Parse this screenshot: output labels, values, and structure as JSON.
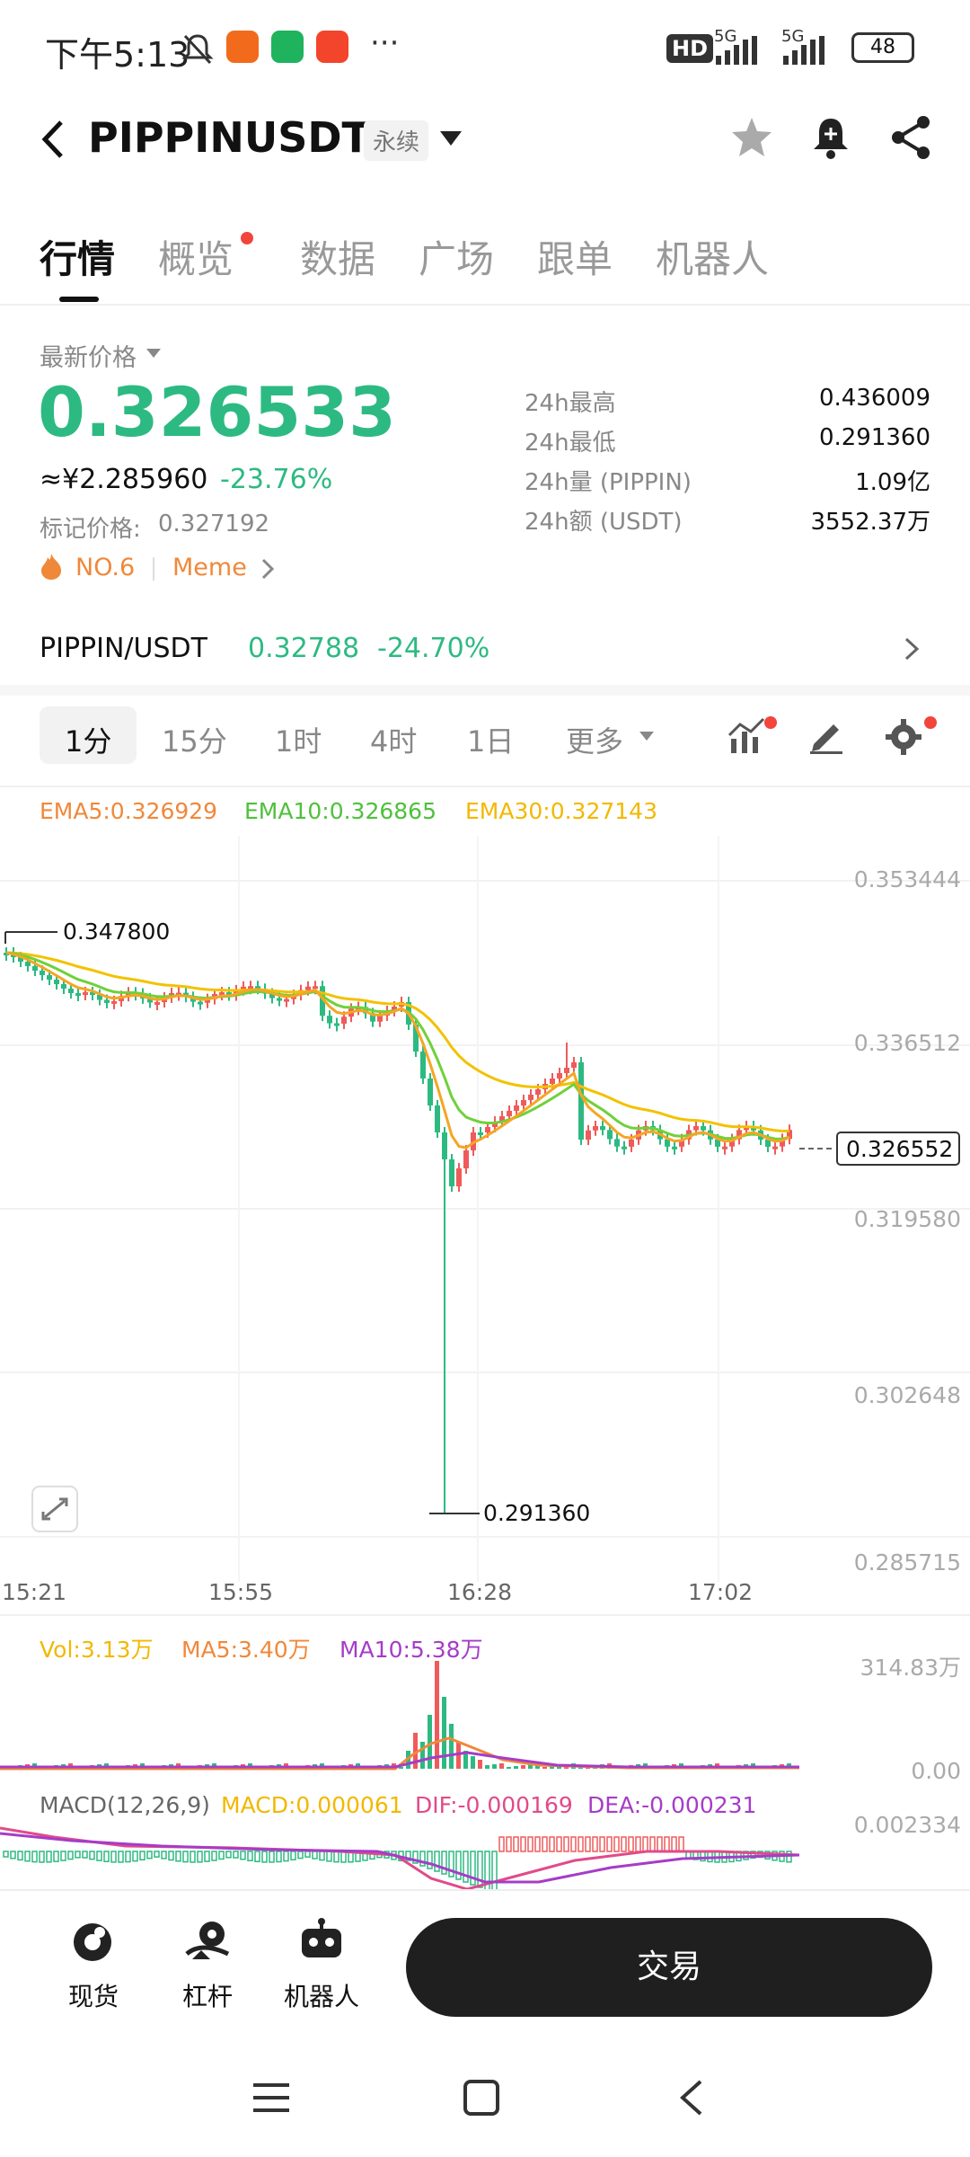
{
  "status_bar": {
    "time": "下午5:13",
    "dots": "···",
    "hd": "HD",
    "net1": "5G",
    "net2": "5G",
    "battery": "48"
  },
  "header": {
    "title": "PIPPINUSDT",
    "badge": "永续"
  },
  "tabs": [
    {
      "label": "行情"
    },
    {
      "label": "概览"
    },
    {
      "label": "数据"
    },
    {
      "label": "广场"
    },
    {
      "label": "跟单"
    },
    {
      "label": "机器人"
    }
  ],
  "price": {
    "label": "最新价格",
    "value": "0.326533",
    "cny": "≈¥2.285960",
    "change": "-23.76%",
    "mark_label": "标记价格:",
    "mark_value": "0.327192",
    "rank": "NO.6",
    "tag": "Meme"
  },
  "stats": [
    {
      "label": "24h最高",
      "value": "0.436009"
    },
    {
      "label": "24h最低",
      "value": "0.291360"
    },
    {
      "label": "24h量 (PIPPIN)",
      "value": "1.09亿"
    },
    {
      "label": "24h额 (USDT)",
      "value": "3552.37万"
    }
  ],
  "spot": {
    "pair": "PIPPIN/USDT",
    "price": "0.32788",
    "change": "-24.70%"
  },
  "timeframes": [
    {
      "label": "1分"
    },
    {
      "label": "15分"
    },
    {
      "label": "1时"
    },
    {
      "label": "4时"
    },
    {
      "label": "1日"
    },
    {
      "label": "更多"
    }
  ],
  "ema": {
    "ema5": "EMA5:0.326929",
    "ema10": "EMA10:0.326865",
    "ema30": "EMA30:0.327143"
  },
  "chart": {
    "y_ticks": [
      "0.353444",
      "0.336512",
      "0.319580",
      "0.302648",
      "0.285715"
    ],
    "x_ticks": [
      "15:21",
      "15:55",
      "16:28",
      "17:02"
    ],
    "high_label": "0.347800",
    "low_label": "0.291360",
    "current_label": "0.326552",
    "colors": {
      "up": "#ef5b5b",
      "down": "#2dba82",
      "ema5": "#f5a623",
      "ema10": "#6fd13a",
      "ema30": "#f2c200"
    }
  },
  "volume": {
    "vol": "Vol:3.13万",
    "ma5": "MA5:3.40万",
    "ma10": "MA10:5.38万",
    "y_top": "314.83万",
    "y_bottom": "0.00"
  },
  "macd": {
    "label": "MACD(12,26,9)",
    "macd": "MACD:0.000061",
    "dif": "DIF:-0.000169",
    "dea": "DEA:-0.000231",
    "y_top": "0.002334"
  },
  "bottom_nav": [
    {
      "label": "现货"
    },
    {
      "label": "杠杆"
    },
    {
      "label": "机器人"
    }
  ],
  "trade_button": "交易"
}
